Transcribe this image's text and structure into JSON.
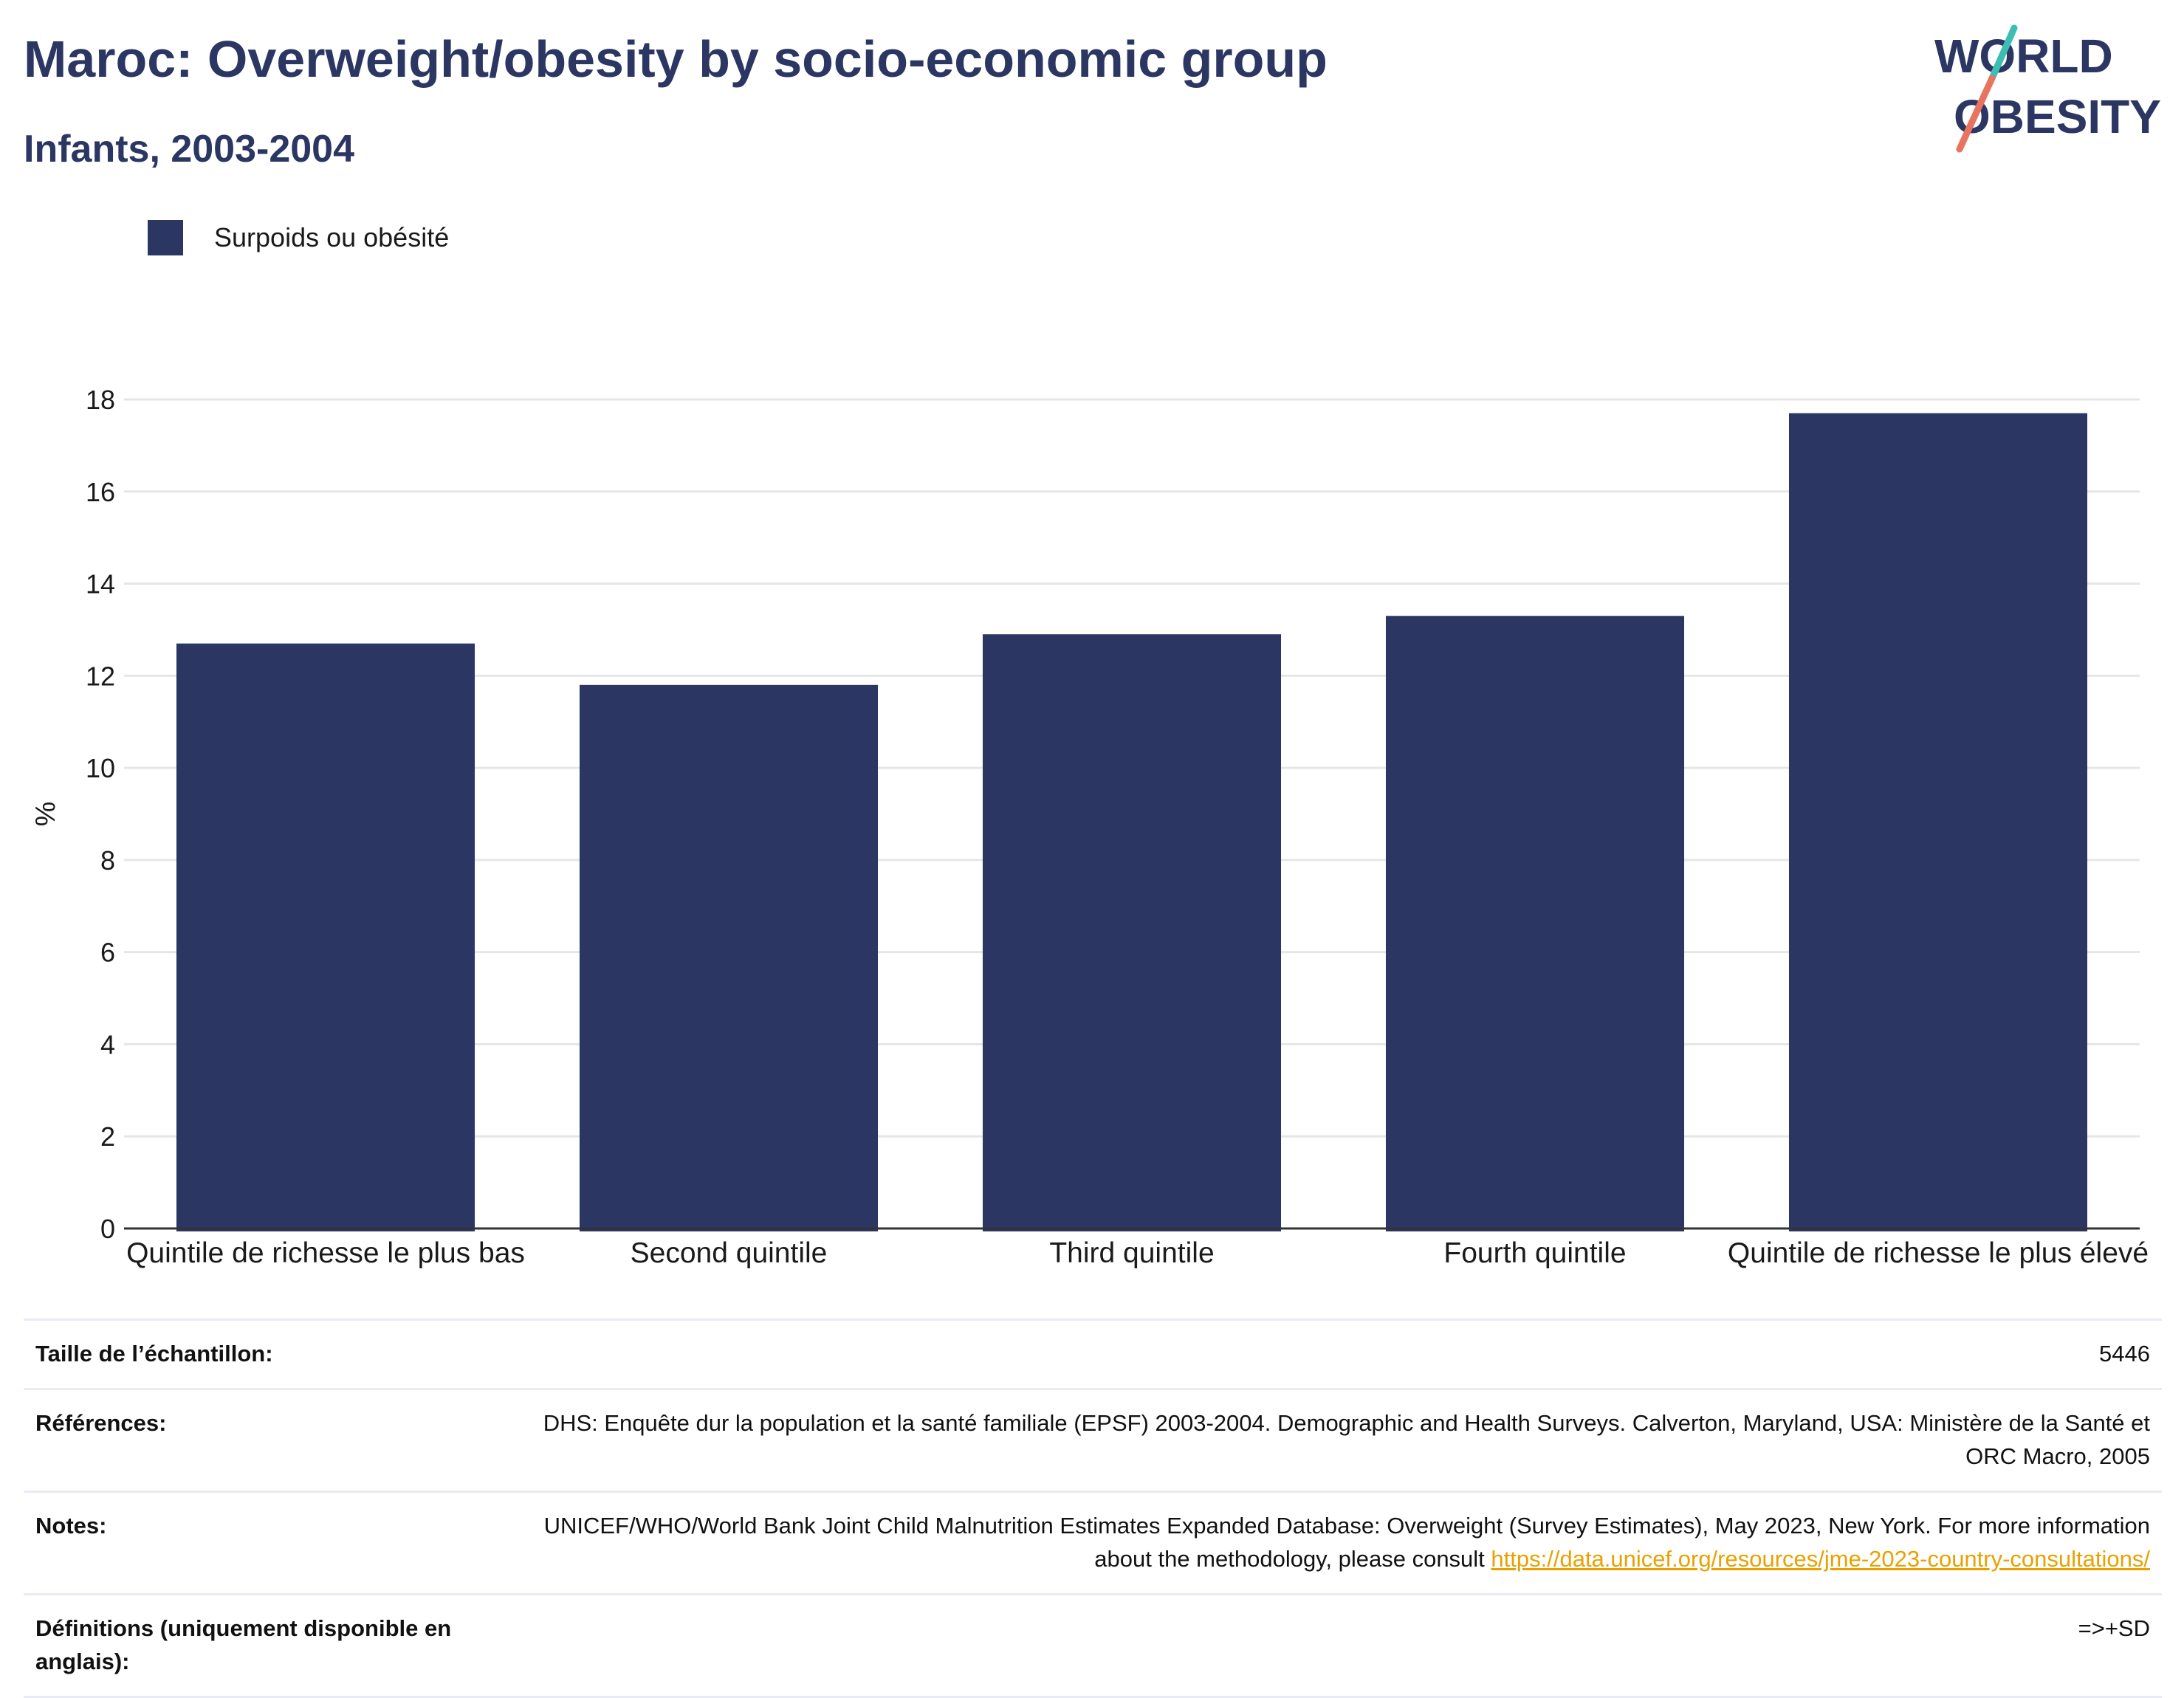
{
  "header": {
    "title": "Maroc: Overweight/obesity by socio-economic group",
    "subtitle": "Infants, 2003-2004"
  },
  "logo": {
    "line1": "WORLD",
    "line2": "OBESITY",
    "colors": {
      "text": "#2b3663",
      "slash_top": "#3dbdb3",
      "slash_bottom": "#e8735f"
    }
  },
  "colors": {
    "bar": "#2b3663",
    "gridline": "#e6e6e6",
    "axis": "#333333",
    "link": "#e8a100"
  },
  "chart_data": {
    "type": "bar",
    "categories": [
      "Quintile de richesse le plus bas",
      "Second quintile",
      "Third quintile",
      "Fourth quintile",
      "Quintile de richesse le plus élevé"
    ],
    "series": [
      {
        "name": "Surpoids ou obésité",
        "values": [
          12.7,
          11.8,
          12.9,
          13.3,
          17.7
        ]
      }
    ],
    "ylabel": "%",
    "xlabel": "",
    "ylim": [
      0,
      18
    ],
    "yticks": [
      0,
      2,
      4,
      6,
      8,
      10,
      12,
      14,
      16,
      18
    ],
    "grid": true,
    "legend": "top-left"
  },
  "references": [
    {
      "key": "Taille de l’échantillon:",
      "value": "5446"
    },
    {
      "key": "Références:",
      "value": "DHS: Enquête dur la population et la santé familiale (EPSF) 2003-2004. Demographic and Health Surveys. Calverton, Maryland, USA: Ministère de la Santé et ORC Macro, 2005"
    },
    {
      "key": "Notes:",
      "value": "UNICEF/WHO/World Bank Joint Child Malnutrition Estimates Expanded Database: Overweight (Survey Estimates), May 2023, New York. For more information about the methodology, please consult ",
      "link": "https://data.unicef.org/resources/jme-2023-country-consultations/"
    },
    {
      "key": "Définitions (uniquement disponible en anglais):",
      "value": "=>+SD"
    }
  ]
}
